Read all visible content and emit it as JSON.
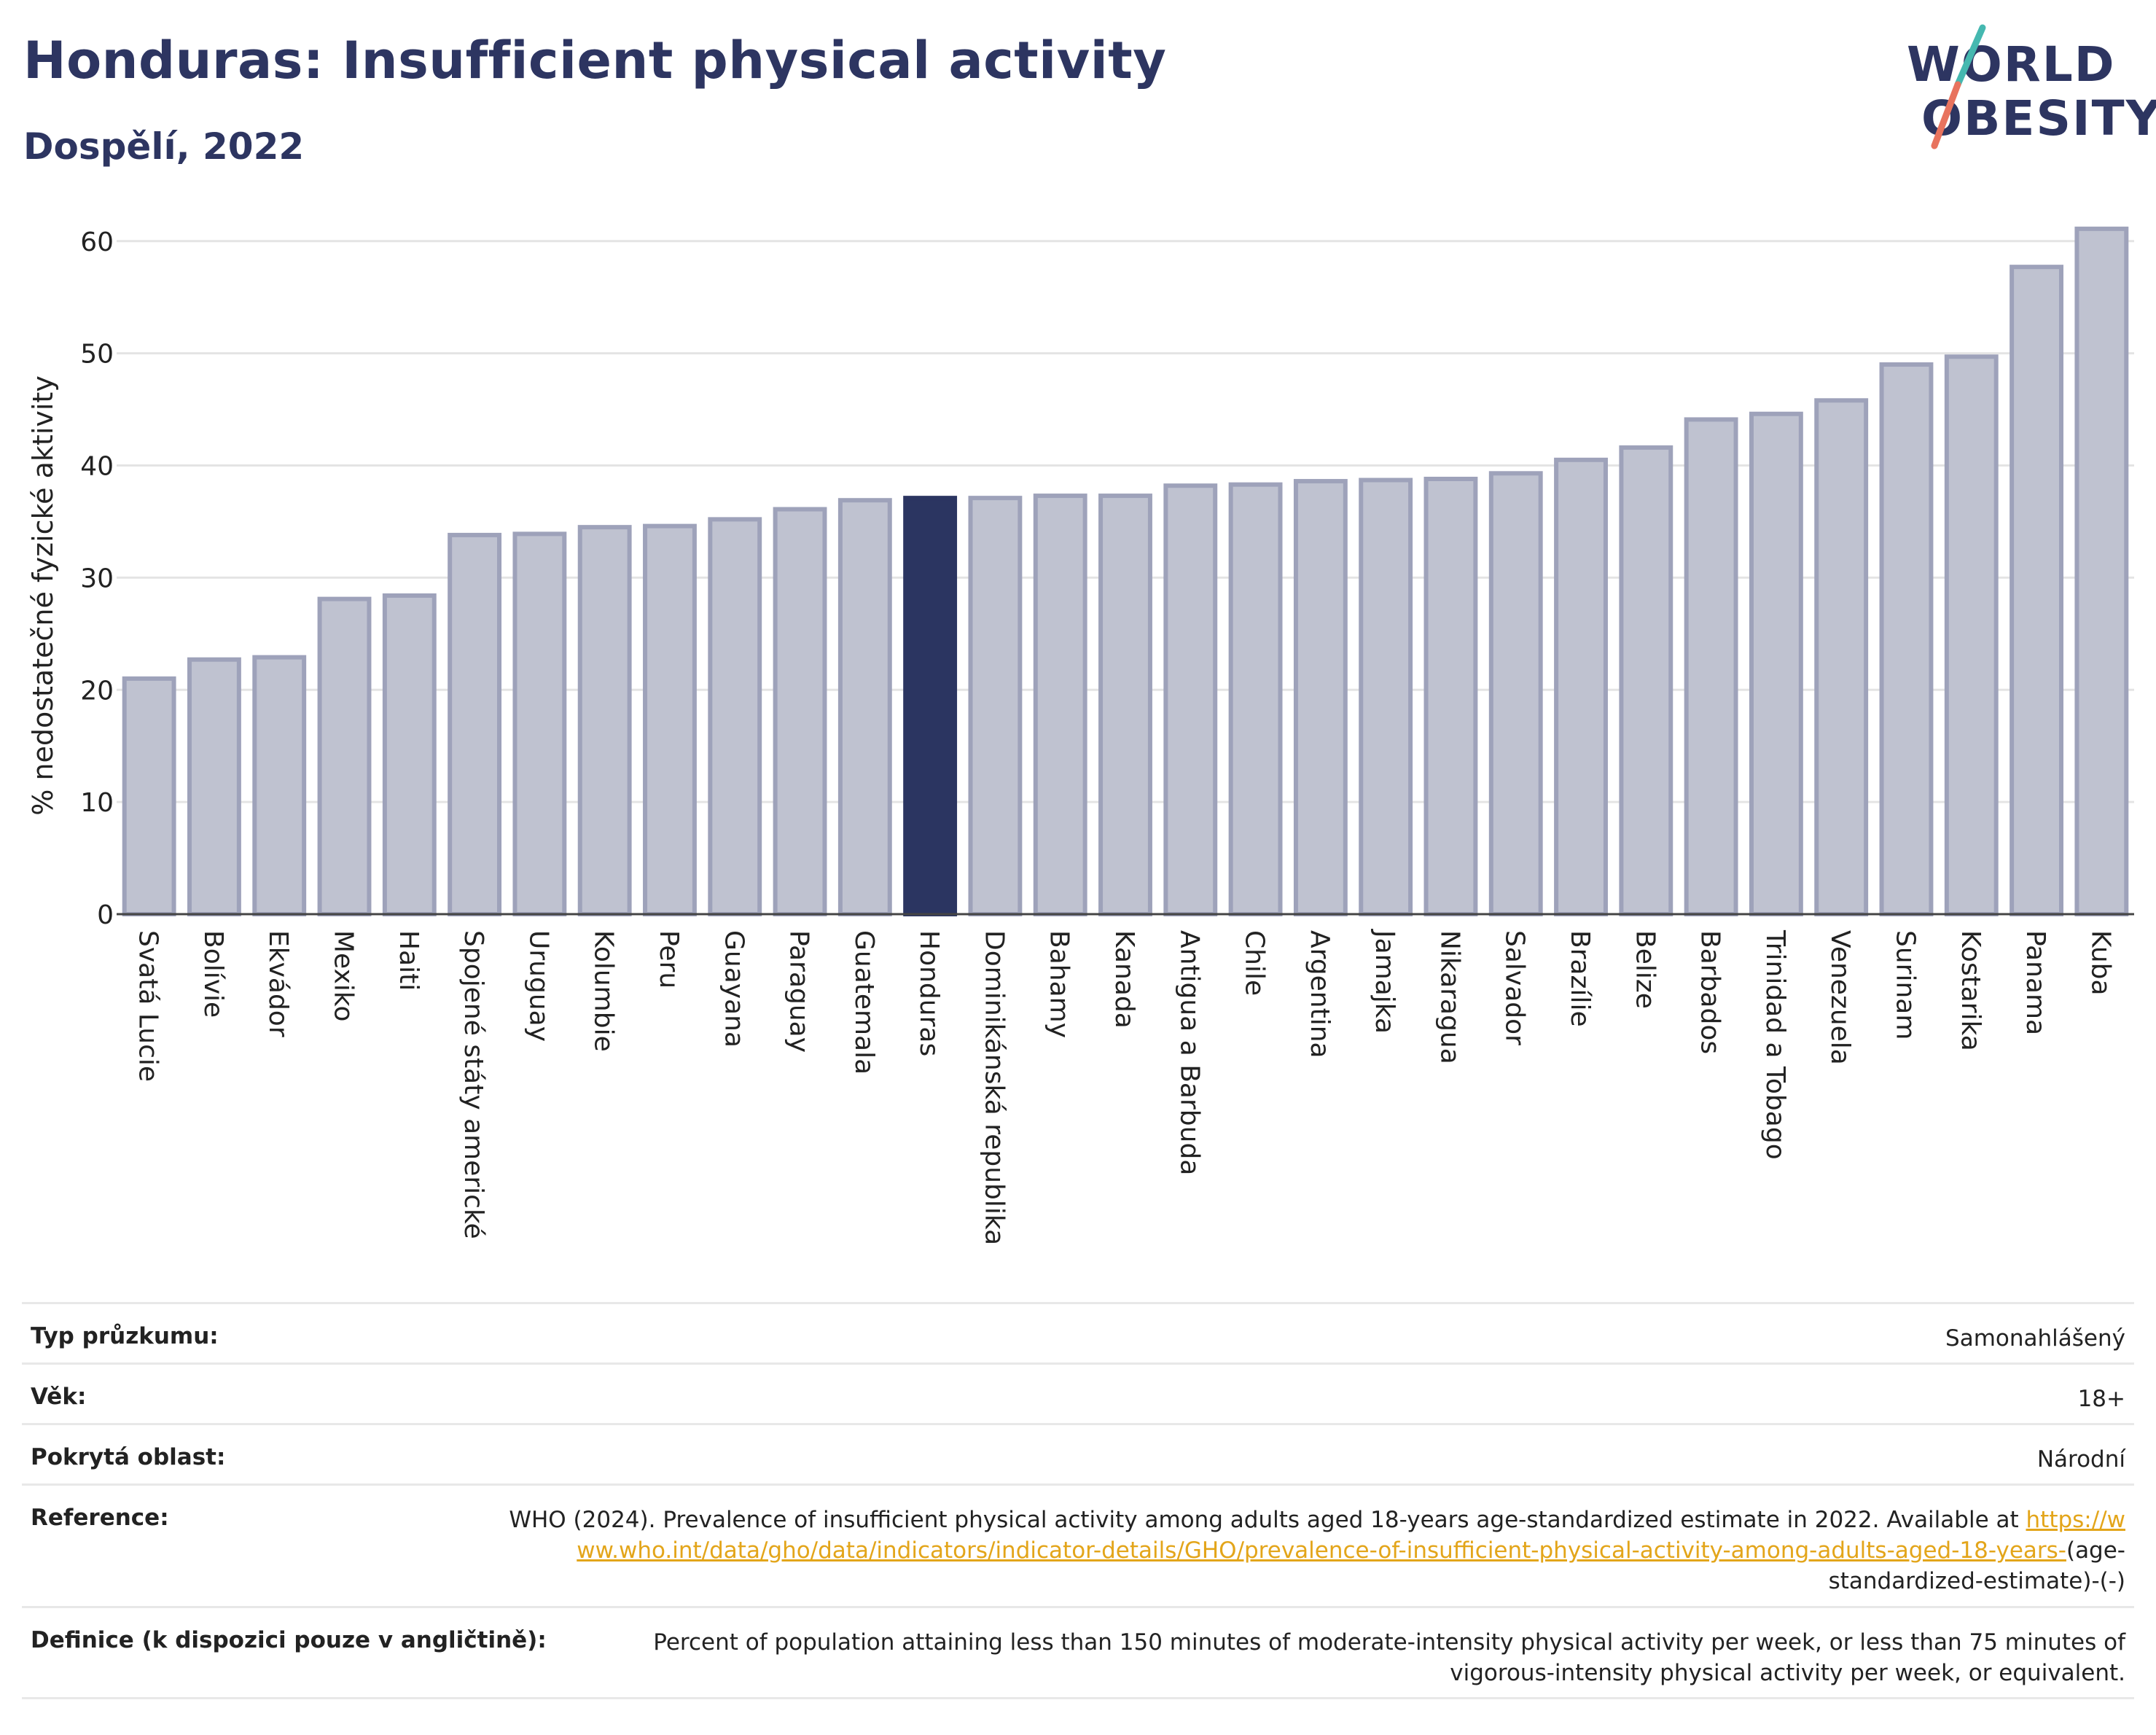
{
  "header": {
    "title": "Honduras: Insufficient physical activity",
    "subtitle": "Dospělí, 2022"
  },
  "logo": {
    "line1": "WORLD",
    "line2": "OBESITY",
    "slash_colors": [
      "#45b8b0",
      "#e8735e"
    ]
  },
  "chart_data": {
    "type": "bar",
    "ylabel": "% nedostatečné fyzické aktivity",
    "ylim": [
      0,
      62
    ],
    "yticks": [
      0,
      10,
      20,
      30,
      40,
      50,
      60
    ],
    "grid": true,
    "highlight": "Honduras",
    "colors": {
      "bar": "#bfc2d0",
      "bar_edge": "#9ea2ba",
      "highlight": "#2b3561"
    },
    "categories": [
      "Svatá Lucie",
      "Bolívie",
      "Ekvádor",
      "Mexiko",
      "Haiti",
      "Spojené státy americké",
      "Uruguay",
      "Kolumbie",
      "Peru",
      "Guayana",
      "Paraguay",
      "Guatemala",
      "Honduras",
      "Dominikánská republika",
      "Bahamy",
      "Kanada",
      "Antigua a Barbuda",
      "Chile",
      "Argentina",
      "Jamajka",
      "Nikaragua",
      "Salvador",
      "Brazílie",
      "Belize",
      "Barbados",
      "Trinidad a Tobago",
      "Venezuela",
      "Surinam",
      "Kostarika",
      "Panama",
      "Kuba"
    ],
    "values": [
      21.0,
      22.7,
      22.9,
      28.1,
      28.4,
      33.8,
      33.9,
      34.5,
      34.6,
      35.2,
      36.1,
      36.9,
      37.1,
      37.1,
      37.3,
      37.3,
      38.2,
      38.3,
      38.6,
      38.7,
      38.8,
      39.3,
      40.5,
      41.6,
      44.1,
      44.6,
      45.8,
      49.0,
      49.7,
      57.7,
      61.1
    ]
  },
  "info": {
    "rows": [
      {
        "label": "Typ průzkumu:",
        "value": "Samonahlášený"
      },
      {
        "label": "Věk:",
        "value": "18+"
      },
      {
        "label": "Pokrytá oblast:",
        "value": "Národní"
      }
    ],
    "reference": {
      "label": "Reference:",
      "text": "WHO (2024). Prevalence of insufficient physical activity among adults aged 18-years age-standardized estimate in 2022. Available at",
      "link": "https://www.who.int/data/gho/data/indicators/indicator-details/GHO/prevalence-of-insufficient-physical-activity-among-adults-aged-18-years-",
      "suffix": "(age-standardized-estimate)-(-)"
    },
    "definition": {
      "label": "Definice (k dispozici pouze v angličtině):",
      "value": "Percent of population attaining less than 150 minutes of moderate-intensity physical activity per week, or less than 75 minutes of vigorous-intensity physical activity per week, or equivalent."
    }
  }
}
